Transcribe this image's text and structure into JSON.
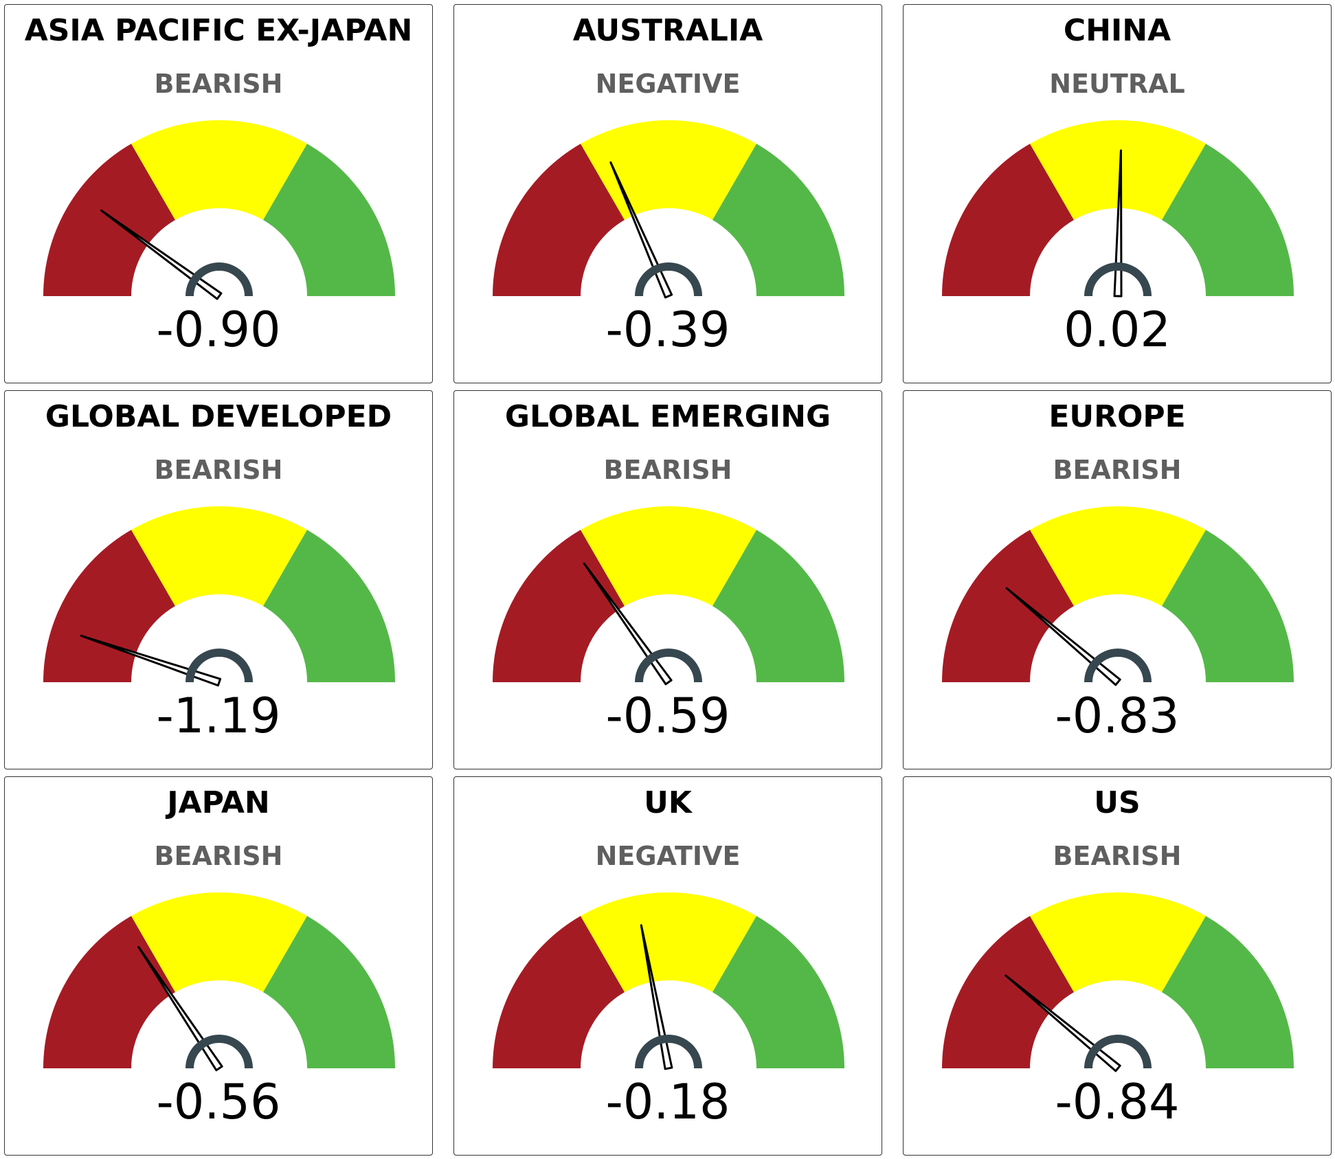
{
  "colors": {
    "negative_band": "#a51b24",
    "neutral_band": "#ffff00",
    "positive_band": "#54b848",
    "needle": "#000000",
    "hub": "#37474f",
    "status_text": "#5f5f5f"
  },
  "chart_data": [
    {
      "type": "gauge",
      "title": "ASIA PACIFIC EX-JAPAN",
      "status": "BEARISH",
      "value_label": "-0.90",
      "value": -0.9
    },
    {
      "type": "gauge",
      "title": "AUSTRALIA",
      "status": "NEGATIVE",
      "value_label": "-0.39",
      "value": -0.39
    },
    {
      "type": "gauge",
      "title": "CHINA",
      "status": "NEUTRAL",
      "value_label": "0.02",
      "value": 0.02
    },
    {
      "type": "gauge",
      "title": "GLOBAL DEVELOPED",
      "status": "BEARISH",
      "value_label": "-1.19",
      "value": -1.19
    },
    {
      "type": "gauge",
      "title": "GLOBAL EMERGING",
      "status": "BEARISH",
      "value_label": "-0.59",
      "value": -0.59
    },
    {
      "type": "gauge",
      "title": "EUROPE",
      "status": "BEARISH",
      "value_label": "-0.83",
      "value": -0.83
    },
    {
      "type": "gauge",
      "title": "JAPAN",
      "status": "BEARISH",
      "value_label": "-0.56",
      "value": -0.56
    },
    {
      "type": "gauge",
      "title": "UK",
      "status": "NEGATIVE",
      "value_label": "-0.18",
      "value": -0.18
    },
    {
      "type": "gauge",
      "title": "US",
      "status": "BEARISH",
      "value_label": "-0.84",
      "value": -0.84
    }
  ]
}
